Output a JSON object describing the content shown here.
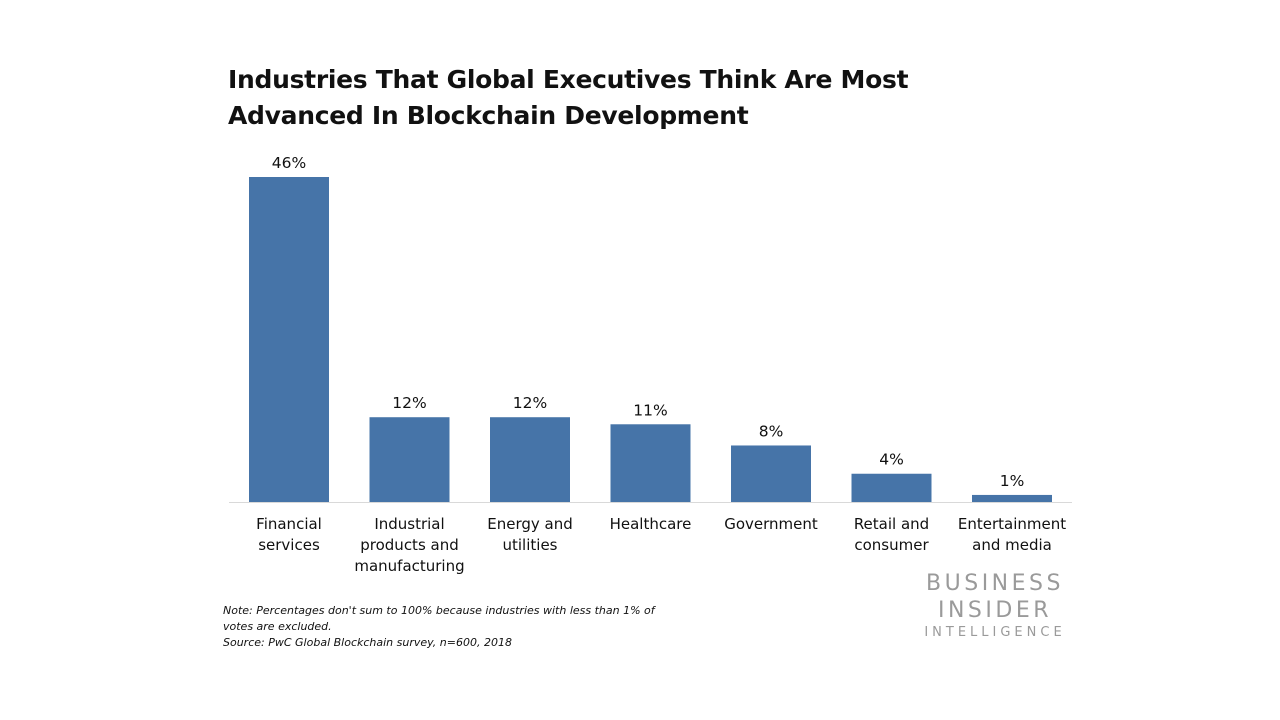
{
  "chart_data": {
    "type": "bar",
    "title_lines": [
      "Industries That Global Executives Think Are Most",
      "Advanced In Blockchain Development"
    ],
    "categories": [
      [
        "Financial",
        "services"
      ],
      [
        "Industrial",
        "products and",
        "manufacturing"
      ],
      [
        "Energy and",
        "utilities"
      ],
      [
        "Healthcare"
      ],
      [
        "Government"
      ],
      [
        "Retail and",
        "consumer"
      ],
      [
        "Entertainment",
        "and media"
      ]
    ],
    "values": [
      46,
      12,
      12,
      11,
      8,
      4,
      1
    ],
    "value_labels": [
      "46%",
      "12%",
      "12%",
      "11%",
      "8%",
      "4%",
      "1%"
    ],
    "unit": "%",
    "ylim": [
      0,
      46
    ],
    "grid": false,
    "legend": "none",
    "bar_color": "#4674a8",
    "baseline_color": "#d9d9d9"
  },
  "notes": {
    "line1": "Note: Percentages don't sum to 100% because industries with less than 1% of",
    "line2": "votes are excluded.",
    "source": "Source: PwC Global Blockchain survey, n=600, 2018"
  },
  "logo": {
    "line1": "BUSINESS",
    "line2": "INSIDER",
    "line3": "INTELLIGENCE"
  }
}
